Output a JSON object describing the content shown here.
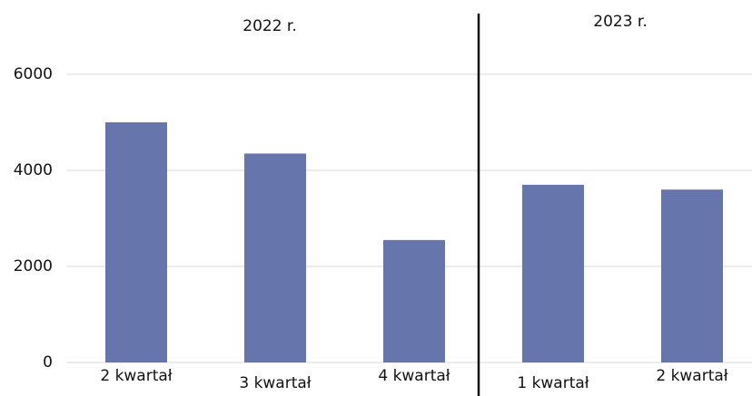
{
  "chart_data": {
    "type": "bar",
    "categories": [
      "2 kwartał",
      "3 kwartał",
      "4 kwartał",
      "1 kwartał",
      "2 kwartał"
    ],
    "values": [
      5000,
      4350,
      2550,
      3700,
      3600
    ],
    "color": "#6676ad",
    "ylim": [
      0,
      7000
    ],
    "yticks": [
      0,
      2000,
      4000,
      6000
    ],
    "grid": true,
    "annotations": [
      "2022 r.",
      "2023 r."
    ]
  }
}
